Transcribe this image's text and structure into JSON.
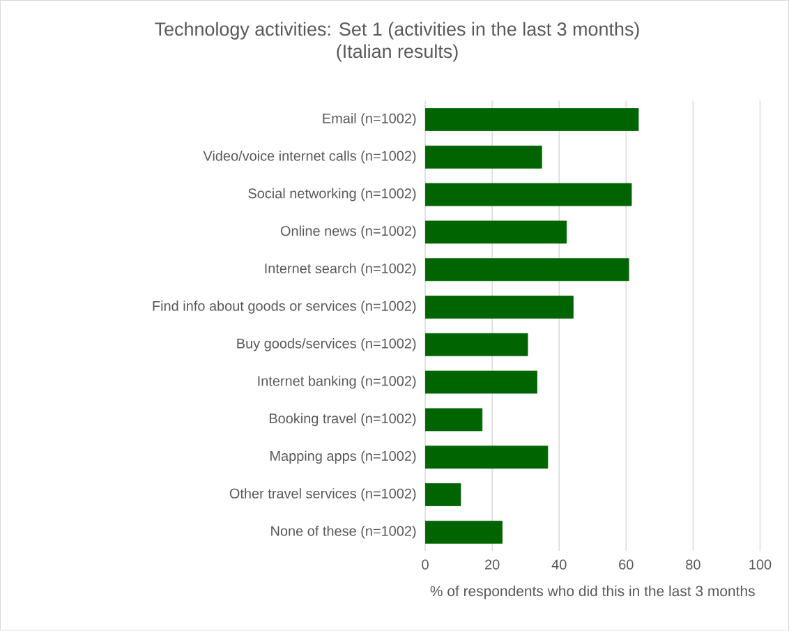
{
  "chart_data": {
    "type": "bar",
    "orientation": "horizontal",
    "title": "Technology activities: Set 1 (activities in the last 3 months)",
    "subtitle": "(Italian results)",
    "xlabel": "% of respondents who did this in the last 3 months",
    "categories": [
      "Email (n=1002)",
      "Video/voice internet calls (n=1002)",
      "Social networking (n=1002)",
      "Online news (n=1002)",
      "Internet search (n=1002)",
      "Find info about goods or services (n=1002)",
      "Buy goods/services (n=1002)",
      "Internet banking (n=1002)",
      "Booking travel (n=1002)",
      "Mapping apps (n=1002)",
      "Other travel services (n=1002)",
      "None of these (n=1002)"
    ],
    "values": [
      63.7,
      34.8,
      61.6,
      42.2,
      60.8,
      44.2,
      30.6,
      33.4,
      17.0,
      36.6,
      10.6,
      23.0
    ],
    "color": "#006400",
    "xlim": [
      0,
      100
    ],
    "xticks": [
      0,
      20,
      40,
      60,
      80,
      100
    ],
    "grid": "x"
  }
}
